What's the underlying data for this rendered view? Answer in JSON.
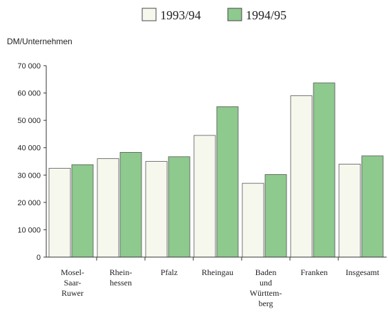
{
  "chart_data": {
    "type": "bar",
    "ylabel": "DM/Unternehmen",
    "ylim": [
      0,
      70000
    ],
    "yticks": [
      {
        "value": 0,
        "label": "0"
      },
      {
        "value": 10000,
        "label": "10 000"
      },
      {
        "value": 20000,
        "label": "20 000"
      },
      {
        "value": 30000,
        "label": "30 000"
      },
      {
        "value": 40000,
        "label": "40 000"
      },
      {
        "value": 50000,
        "label": "50 000"
      },
      {
        "value": 60000,
        "label": "60 000"
      },
      {
        "value": 70000,
        "label": "70 000"
      }
    ],
    "categories": [
      [
        "Mosel-",
        "Saar-",
        "Ruwer"
      ],
      [
        "Rhein-",
        "hessen"
      ],
      [
        "Pfalz"
      ],
      [
        "Rheingau"
      ],
      [
        "Baden",
        "und",
        "Württem-",
        "berg"
      ],
      [
        "Franken"
      ],
      [
        "Insgesamt"
      ]
    ],
    "series": [
      {
        "name": "1993/94",
        "color": "#f6f8ee",
        "values": [
          32500,
          36000,
          35000,
          44500,
          27000,
          59000,
          34000
        ]
      },
      {
        "name": "1994/95",
        "color": "#8ec98e",
        "values": [
          33800,
          38300,
          36700,
          55000,
          30200,
          63700,
          37000
        ]
      }
    ],
    "legend_position": "top",
    "grid": false
  }
}
